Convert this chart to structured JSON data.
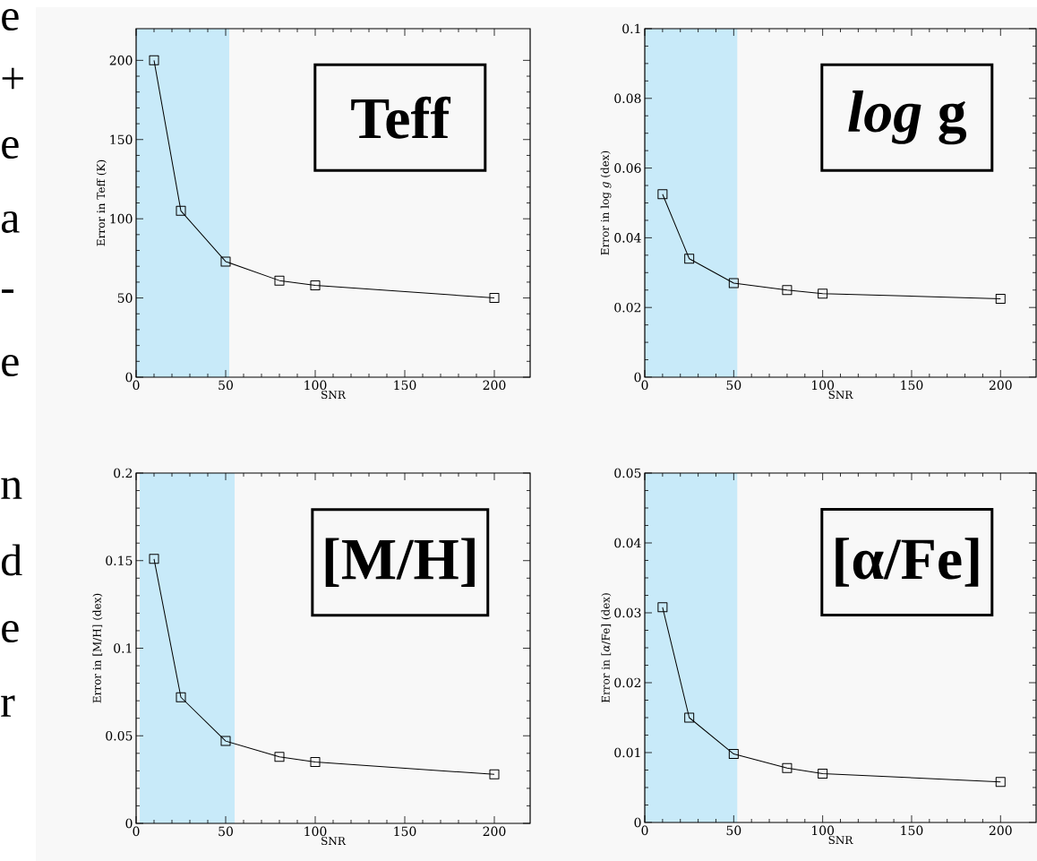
{
  "chart_data": [
    {
      "type": "other",
      "annotations": [
        "e",
        "+",
        "e",
        "a",
        "-",
        "e",
        "n",
        "d",
        "e",
        "r"
      ]
    },
    {
      "type": "line",
      "xlabel": "SNR",
      "ylabel": "Error in Teff (K)",
      "annotations": [
        "Teff"
      ],
      "x": [
        10,
        25,
        50,
        80,
        100,
        200
      ],
      "values": [
        200,
        105,
        73,
        61,
        58,
        50
      ],
      "color": "#000000",
      "marker": "square",
      "xlim": [
        0,
        220
      ],
      "ylim": [
        0,
        220
      ],
      "xticks": [
        0,
        50,
        100,
        150,
        200
      ],
      "yticks": [
        0,
        50,
        100,
        150,
        200
      ],
      "bands": [
        {
          "axis": "x",
          "from": 0,
          "to": 52,
          "color": "#c8eaf9"
        }
      ]
    },
    {
      "type": "line",
      "xlabel": "SNR",
      "ylabel": "Error in log *g* (dex)",
      "annotations": [
        "*log* g"
      ],
      "x": [
        10,
        25,
        50,
        80,
        100,
        200
      ],
      "values": [
        0.0525,
        0.034,
        0.027,
        0.025,
        0.024,
        0.0225
      ],
      "color": "#000000",
      "marker": "square",
      "xlim": [
        0,
        220
      ],
      "ylim": [
        0,
        0.1
      ],
      "xticks": [
        0,
        50,
        100,
        150,
        200
      ],
      "yticks": [
        0,
        0.02,
        0.04,
        0.06,
        0.08,
        0.1
      ],
      "bands": [
        {
          "axis": "x",
          "from": 0,
          "to": 52,
          "color": "#c8eaf9"
        }
      ]
    },
    {
      "type": "line",
      "xlabel": "SNR",
      "ylabel": "Error in [M/H] (dex)",
      "annotations": [
        "[M/H]"
      ],
      "x": [
        10,
        25,
        50,
        80,
        100,
        200
      ],
      "values": [
        0.151,
        0.072,
        0.047,
        0.038,
        0.035,
        0.028
      ],
      "color": "#000000",
      "marker": "square",
      "xlim": [
        0,
        220
      ],
      "ylim": [
        0,
        0.2
      ],
      "xticks": [
        0,
        50,
        100,
        150,
        200
      ],
      "yticks": [
        0,
        0.05,
        0.1,
        0.15,
        0.2
      ],
      "bands": [
        {
          "axis": "x",
          "from": 2,
          "to": 55,
          "color": "#c8eaf9"
        }
      ]
    },
    {
      "type": "line",
      "xlabel": "SNR",
      "ylabel": "Error in [*α*/Fe] (dex)",
      "annotations": [
        "[α/Fe]"
      ],
      "x": [
        10,
        25,
        50,
        80,
        100,
        200
      ],
      "values": [
        0.0308,
        0.015,
        0.0098,
        0.0078,
        0.007,
        0.0058
      ],
      "color": "#000000",
      "marker": "square",
      "xlim": [
        0,
        220
      ],
      "ylim": [
        0,
        0.05
      ],
      "xticks": [
        0,
        50,
        100,
        150,
        200
      ],
      "yticks": [
        0,
        0.01,
        0.02,
        0.03,
        0.04,
        0.05
      ],
      "bands": [
        {
          "axis": "x",
          "from": 0,
          "to": 52,
          "color": "#c8eaf9"
        }
      ]
    }
  ]
}
